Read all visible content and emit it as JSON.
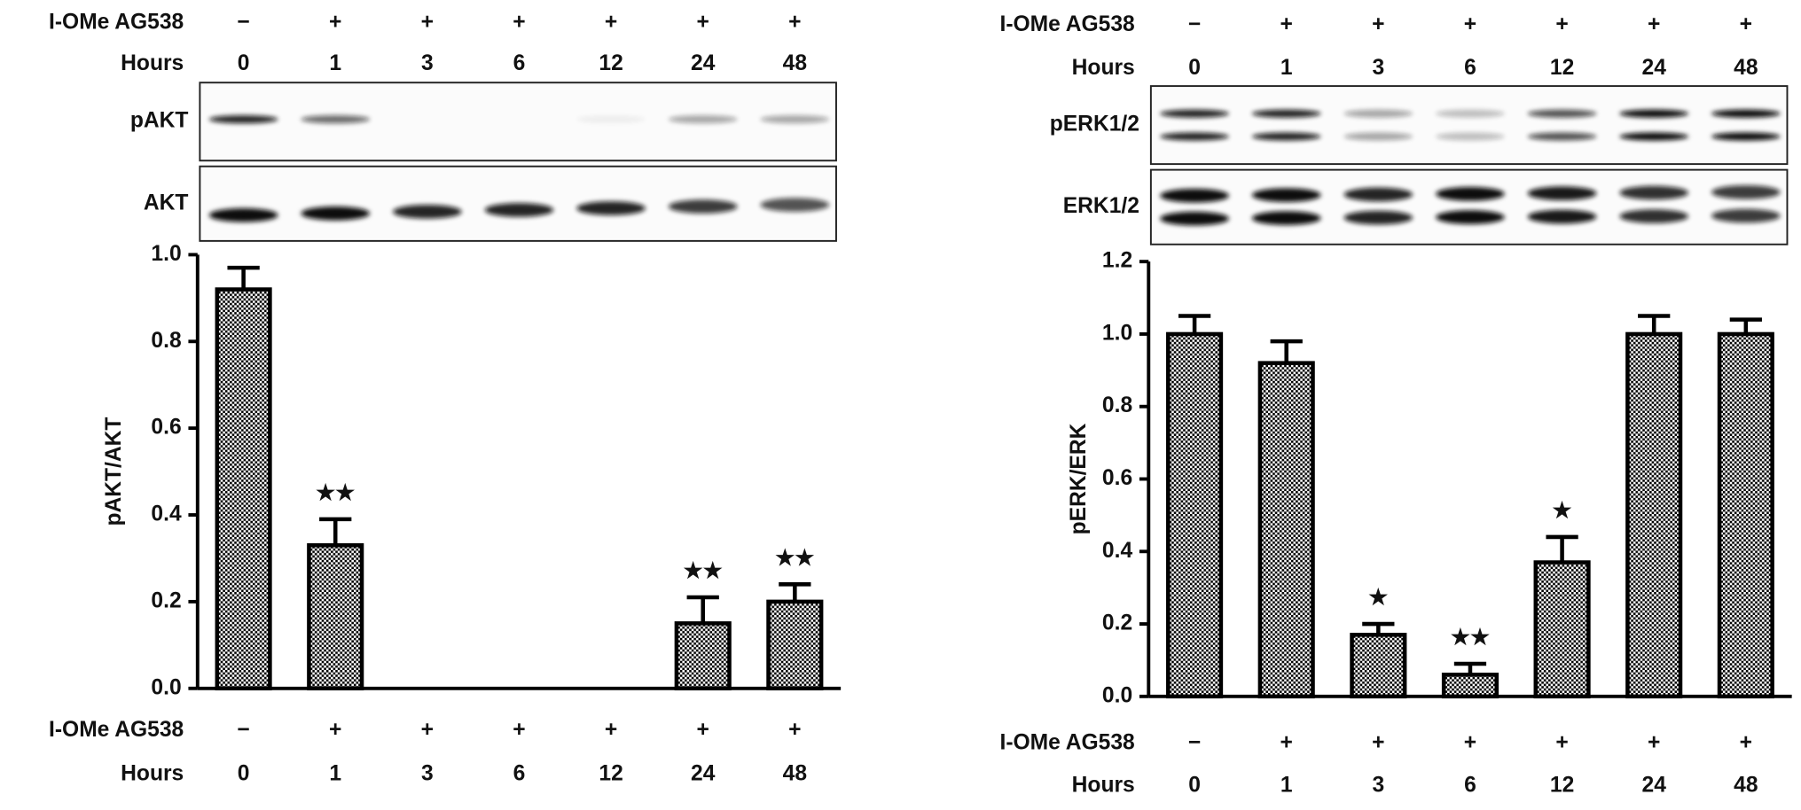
{
  "chart_data": [
    {
      "type": "bar",
      "blot_rows": [
        "pAKT",
        "AKT"
      ],
      "row_labels": [
        "I-OMe AG538",
        "Hours"
      ],
      "treatment": [
        "−",
        "+",
        "+",
        "+",
        "+",
        "+",
        "+"
      ],
      "categories": [
        "0",
        "1",
        "3",
        "6",
        "12",
        "24",
        "48"
      ],
      "ylabel": "pAKT/AKT",
      "values": [
        0.92,
        0.33,
        0,
        0,
        0,
        0.15,
        0.2
      ],
      "errors": [
        0.05,
        0.06,
        0,
        0,
        0,
        0.06,
        0.04
      ],
      "color": "#000000",
      "ylim": [
        0,
        1.0
      ],
      "yticks": [
        {
          "value": 0,
          "label": "0.0"
        },
        {
          "value": 0.2,
          "label": "0.2"
        },
        {
          "value": 0.4,
          "label": "0.4"
        },
        {
          "value": 0.6,
          "label": "0.6"
        },
        {
          "value": 0.8,
          "label": "0.8"
        },
        {
          "value": 1.0,
          "label": "1.0"
        }
      ],
      "annotations": [
        {
          "category": "1",
          "text": "★★"
        },
        {
          "category": "24",
          "text": "★★"
        },
        {
          "category": "48",
          "text": "★★"
        }
      ]
    },
    {
      "type": "bar",
      "blot_rows": [
        "pERK1/2",
        "ERK1/2"
      ],
      "row_labels": [
        "I-OMe AG538",
        "Hours"
      ],
      "treatment": [
        "−",
        "+",
        "+",
        "+",
        "+",
        "+",
        "+"
      ],
      "categories": [
        "0",
        "1",
        "3",
        "6",
        "12",
        "24",
        "48"
      ],
      "ylabel": "pERK/ERK",
      "values": [
        1.0,
        0.92,
        0.17,
        0.06,
        0.37,
        1.0,
        1.0
      ],
      "errors": [
        0.05,
        0.06,
        0.03,
        0.03,
        0.07,
        0.05,
        0.04
      ],
      "color": "#000000",
      "ylim": [
        0,
        1.2
      ],
      "yticks": [
        {
          "value": 0,
          "label": "0.0"
        },
        {
          "value": 0.2,
          "label": "0.2"
        },
        {
          "value": 0.4,
          "label": "0.4"
        },
        {
          "value": 0.6,
          "label": "0.6"
        },
        {
          "value": 0.8,
          "label": "0.8"
        },
        {
          "value": 1.0,
          "label": "1.0"
        },
        {
          "value": 1.2,
          "label": "1.2"
        }
      ],
      "annotations": [
        {
          "category": "3",
          "text": "★"
        },
        {
          "category": "6",
          "text": "★★"
        },
        {
          "category": "12",
          "text": "★"
        }
      ]
    }
  ]
}
